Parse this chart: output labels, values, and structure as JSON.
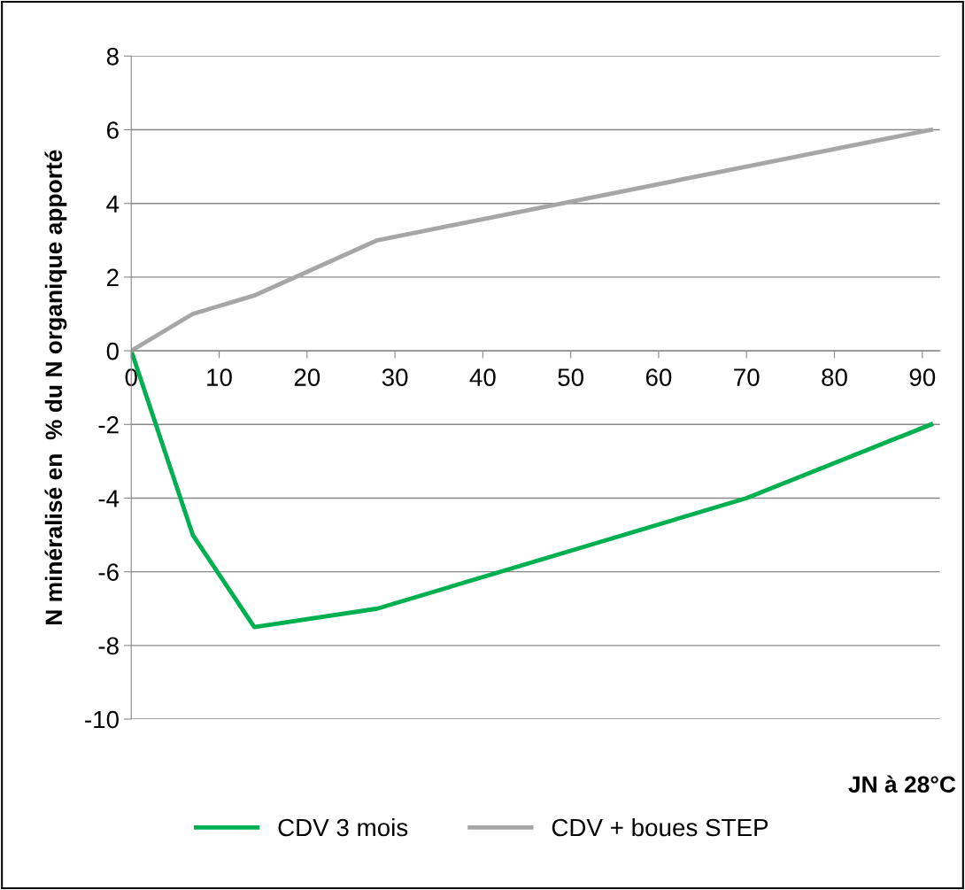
{
  "chart_data": {
    "type": "line",
    "xlabel": "JN à 28°C",
    "ylabel": "N minéralisé en  % du N organique apporté",
    "series": [
      {
        "name": "CDV 3 mois",
        "color": "#00b050",
        "x": [
          0,
          7,
          14,
          28,
          70,
          91
        ],
        "values": [
          0,
          -5,
          -7.5,
          -7,
          -4,
          -2
        ]
      },
      {
        "name": "CDV + boues STEP",
        "color": "#a6a6a6",
        "x": [
          0,
          7,
          14,
          28,
          70,
          91
        ],
        "values": [
          0,
          1,
          1.5,
          3,
          5,
          6
        ]
      }
    ],
    "xlim": [
      0,
      92
    ],
    "xticks": [
      0,
      10,
      20,
      30,
      40,
      50,
      60,
      70,
      80,
      90
    ],
    "ylim": [
      -10,
      8
    ],
    "yticks": [
      -10,
      -8,
      -6,
      -4,
      -2,
      0,
      2,
      4,
      6,
      8
    ],
    "grid": "y",
    "legend": "bottom",
    "marker": "none",
    "line_style": "solid"
  }
}
